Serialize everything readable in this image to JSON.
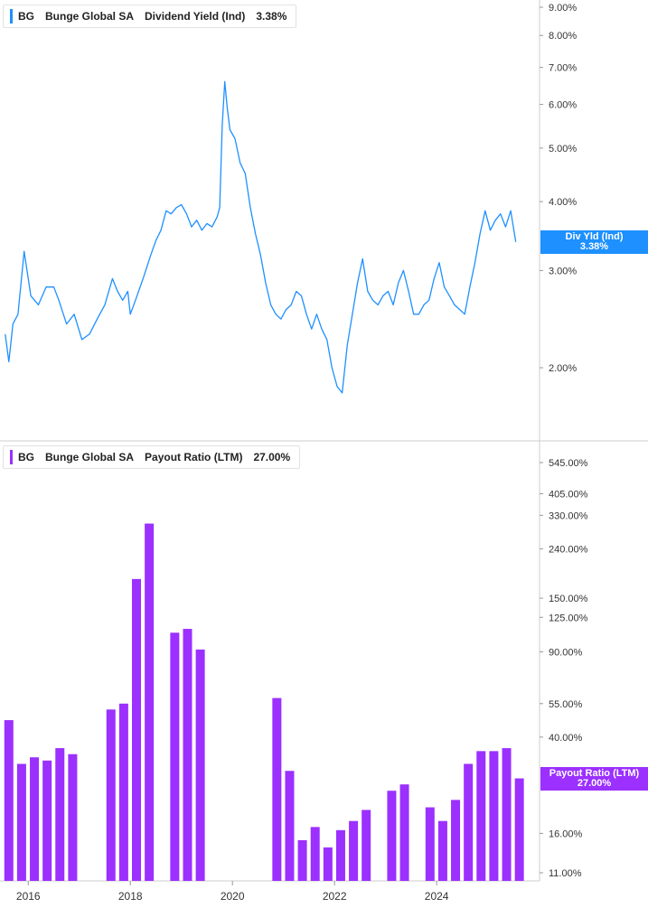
{
  "colors": {
    "yield_line": "#1e90ff",
    "payout_bar": "#9b30ff",
    "axis_text": "#333333",
    "divider": "#cccccc"
  },
  "legend_top": {
    "ticker": "BG",
    "company": "Bunge Global SA",
    "metric": "Dividend Yield (Ind)",
    "value": "3.38%"
  },
  "legend_bottom": {
    "ticker": "BG",
    "company": "Bunge Global SA",
    "metric": "Payout Ratio (LTM)",
    "value": "27.00%"
  },
  "callout_top": {
    "label": "Div Yld (Ind)",
    "value": "3.38%"
  },
  "callout_bottom": {
    "label": "Payout Ratio (LTM)",
    "value": "27.00%"
  },
  "chart_data": [
    {
      "type": "line",
      "name": "Dividend Yield (Ind)",
      "y_scale": "log",
      "yticks": [
        {
          "value": 9.0,
          "label": "9.00%"
        },
        {
          "value": 8.0,
          "label": "8.00%"
        },
        {
          "value": 7.0,
          "label": "7.00%"
        },
        {
          "value": 6.0,
          "label": "6.00%"
        },
        {
          "value": 5.0,
          "label": "5.00%"
        },
        {
          "value": 4.0,
          "label": "4.00%"
        },
        {
          "value": 3.0,
          "label": "3.00%"
        },
        {
          "value": 2.0,
          "label": "2.00%"
        }
      ],
      "points": [
        [
          2015.55,
          2.3
        ],
        [
          2015.62,
          2.05
        ],
        [
          2015.7,
          2.4
        ],
        [
          2015.8,
          2.5
        ],
        [
          2015.92,
          3.25
        ],
        [
          2016.05,
          2.7
        ],
        [
          2016.2,
          2.6
        ],
        [
          2016.35,
          2.8
        ],
        [
          2016.5,
          2.8
        ],
        [
          2016.6,
          2.65
        ],
        [
          2016.75,
          2.4
        ],
        [
          2016.9,
          2.5
        ],
        [
          2017.05,
          2.25
        ],
        [
          2017.2,
          2.3
        ],
        [
          2017.35,
          2.45
        ],
        [
          2017.5,
          2.6
        ],
        [
          2017.65,
          2.9
        ],
        [
          2017.75,
          2.75
        ],
        [
          2017.85,
          2.65
        ],
        [
          2017.95,
          2.75
        ],
        [
          2018.0,
          2.5
        ],
        [
          2018.1,
          2.65
        ],
        [
          2018.25,
          2.9
        ],
        [
          2018.4,
          3.2
        ],
        [
          2018.5,
          3.4
        ],
        [
          2018.6,
          3.55
        ],
        [
          2018.7,
          3.85
        ],
        [
          2018.8,
          3.8
        ],
        [
          2018.9,
          3.9
        ],
        [
          2019.0,
          3.95
        ],
        [
          2019.1,
          3.8
        ],
        [
          2019.2,
          3.6
        ],
        [
          2019.3,
          3.7
        ],
        [
          2019.4,
          3.55
        ],
        [
          2019.5,
          3.65
        ],
        [
          2019.6,
          3.6
        ],
        [
          2019.7,
          3.75
        ],
        [
          2019.75,
          3.9
        ],
        [
          2019.8,
          5.5
        ],
        [
          2019.85,
          6.6
        ],
        [
          2019.9,
          5.9
        ],
        [
          2019.95,
          5.4
        ],
        [
          2020.05,
          5.2
        ],
        [
          2020.15,
          4.7
        ],
        [
          2020.25,
          4.5
        ],
        [
          2020.35,
          3.9
        ],
        [
          2020.45,
          3.5
        ],
        [
          2020.55,
          3.2
        ],
        [
          2020.65,
          2.85
        ],
        [
          2020.75,
          2.6
        ],
        [
          2020.85,
          2.5
        ],
        [
          2020.95,
          2.45
        ],
        [
          2021.05,
          2.55
        ],
        [
          2021.15,
          2.6
        ],
        [
          2021.25,
          2.75
        ],
        [
          2021.35,
          2.7
        ],
        [
          2021.45,
          2.5
        ],
        [
          2021.55,
          2.35
        ],
        [
          2021.65,
          2.5
        ],
        [
          2021.75,
          2.35
        ],
        [
          2021.85,
          2.25
        ],
        [
          2021.95,
          2.0
        ],
        [
          2022.05,
          1.85
        ],
        [
          2022.15,
          1.8
        ],
        [
          2022.25,
          2.2
        ],
        [
          2022.35,
          2.5
        ],
        [
          2022.45,
          2.85
        ],
        [
          2022.55,
          3.15
        ],
        [
          2022.65,
          2.75
        ],
        [
          2022.75,
          2.65
        ],
        [
          2022.85,
          2.6
        ],
        [
          2022.95,
          2.7
        ],
        [
          2023.05,
          2.75
        ],
        [
          2023.15,
          2.6
        ],
        [
          2023.25,
          2.85
        ],
        [
          2023.35,
          3.0
        ],
        [
          2023.45,
          2.75
        ],
        [
          2023.55,
          2.5
        ],
        [
          2023.65,
          2.5
        ],
        [
          2023.75,
          2.6
        ],
        [
          2023.85,
          2.65
        ],
        [
          2023.95,
          2.9
        ],
        [
          2024.05,
          3.1
        ],
        [
          2024.15,
          2.8
        ],
        [
          2024.25,
          2.7
        ],
        [
          2024.35,
          2.6
        ],
        [
          2024.45,
          2.55
        ],
        [
          2024.55,
          2.5
        ],
        [
          2024.65,
          2.8
        ],
        [
          2024.75,
          3.1
        ],
        [
          2024.85,
          3.5
        ],
        [
          2024.95,
          3.85
        ],
        [
          2025.05,
          3.55
        ],
        [
          2025.15,
          3.7
        ],
        [
          2025.25,
          3.8
        ],
        [
          2025.35,
          3.6
        ],
        [
          2025.45,
          3.85
        ],
        [
          2025.55,
          3.38
        ]
      ]
    },
    {
      "type": "bar",
      "name": "Payout Ratio (LTM)",
      "y_scale": "log",
      "yticks": [
        {
          "value": 545,
          "label": "545.00%"
        },
        {
          "value": 405,
          "label": "405.00%"
        },
        {
          "value": 330,
          "label": "330.00%"
        },
        {
          "value": 240,
          "label": "240.00%"
        },
        {
          "value": 150,
          "label": "150.00%"
        },
        {
          "value": 125,
          "label": "125.00%"
        },
        {
          "value": 90,
          "label": "90.00%"
        },
        {
          "value": 55,
          "label": "55.00%"
        },
        {
          "value": 40,
          "label": "40.00%"
        },
        {
          "value": 16,
          "label": "16.00%"
        },
        {
          "value": 11,
          "label": "11.00%"
        }
      ],
      "xticks": [
        {
          "value": 2016,
          "label": "2016"
        },
        {
          "value": 2018,
          "label": "2018"
        },
        {
          "value": 2020,
          "label": "2020"
        },
        {
          "value": 2022,
          "label": "2022"
        },
        {
          "value": 2024,
          "label": "2024"
        }
      ],
      "bars": [
        [
          2015.62,
          47
        ],
        [
          2015.87,
          31
        ],
        [
          2016.12,
          33
        ],
        [
          2016.37,
          32
        ],
        [
          2016.62,
          36
        ],
        [
          2016.87,
          34
        ],
        [
          2017.62,
          52
        ],
        [
          2017.87,
          55
        ],
        [
          2018.12,
          180
        ],
        [
          2018.37,
          305
        ],
        [
          2018.87,
          108
        ],
        [
          2019.12,
          112
        ],
        [
          2019.37,
          92
        ],
        [
          2020.87,
          58
        ],
        [
          2021.12,
          29
        ],
        [
          2021.37,
          15
        ],
        [
          2021.62,
          17
        ],
        [
          2021.87,
          14
        ],
        [
          2022.12,
          16.5
        ],
        [
          2022.37,
          18
        ],
        [
          2022.62,
          20
        ],
        [
          2023.12,
          24
        ],
        [
          2023.37,
          25.5
        ],
        [
          2023.87,
          20.5
        ],
        [
          2024.12,
          18
        ],
        [
          2024.37,
          22
        ],
        [
          2024.62,
          31
        ],
        [
          2024.87,
          35
        ],
        [
          2025.12,
          35
        ],
        [
          2025.37,
          36
        ],
        [
          2025.62,
          27
        ]
      ]
    }
  ]
}
